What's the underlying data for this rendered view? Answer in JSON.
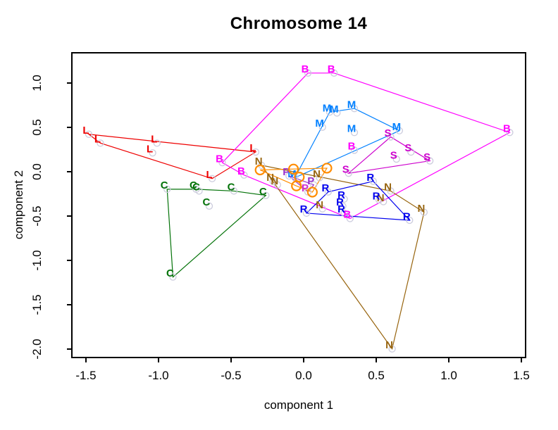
{
  "chart_data": {
    "type": "scatter",
    "title": "Chromosome 14",
    "xlabel": "component 1",
    "ylabel": "component 2",
    "xlim": [
      -1.597,
      1.529
    ],
    "ylim": [
      -2.095,
      1.341
    ],
    "xticks": [
      "-1.5",
      "-1.0",
      "-0.5",
      "0.0",
      "0.5",
      "1.0",
      "1.5"
    ],
    "yticks": [
      "1.0",
      "0.5",
      "0.0",
      "-0.5",
      "-1.0",
      "-1.5",
      "-2.0"
    ],
    "grid": false,
    "legend": "none",
    "marker_ring_color": "#ccccdd",
    "groups": [
      {
        "label": "L",
        "color": "#ee0000",
        "marker": "letter",
        "hull": true,
        "points": [
          [
            -1.5,
            0.47
          ],
          [
            -1.42,
            0.37
          ],
          [
            -1.03,
            0.37
          ],
          [
            -1.06,
            0.26
          ],
          [
            -0.35,
            0.27
          ],
          [
            -0.65,
            -0.03
          ]
        ]
      },
      {
        "label": "C",
        "color": "#047309",
        "marker": "letter",
        "hull": true,
        "points": [
          [
            -0.96,
            -0.15
          ],
          [
            -0.76,
            -0.15
          ],
          [
            -0.74,
            -0.17
          ],
          [
            -0.5,
            -0.17
          ],
          [
            -0.28,
            -0.22
          ],
          [
            -0.67,
            -0.34
          ],
          [
            -0.92,
            -1.14
          ]
        ]
      },
      {
        "label": "B",
        "color": "#ff00ff",
        "marker": "letter",
        "hull": true,
        "points": [
          [
            -0.58,
            0.15
          ],
          [
            -0.43,
            0.01
          ],
          [
            0.01,
            1.16
          ],
          [
            0.19,
            1.16
          ],
          [
            0.33,
            0.29
          ],
          [
            0.3,
            -0.48
          ],
          [
            1.4,
            0.49
          ]
        ]
      },
      {
        "label": "M",
        "color": "#0080ff",
        "marker": "letter",
        "hull": true,
        "points": [
          [
            0.11,
            0.55
          ],
          [
            0.16,
            0.72
          ],
          [
            0.21,
            0.71
          ],
          [
            0.33,
            0.76
          ],
          [
            0.33,
            0.49
          ],
          [
            0.64,
            0.51
          ],
          [
            -0.08,
            -0.02
          ]
        ]
      },
      {
        "label": "S",
        "color": "#cd00cd",
        "marker": "letter",
        "hull": true,
        "points": [
          [
            0.29,
            0.03
          ],
          [
            0.58,
            0.44
          ],
          [
            0.62,
            0.19
          ],
          [
            0.72,
            0.27
          ],
          [
            0.85,
            0.17
          ]
        ]
      },
      {
        "label": "N",
        "color": "#97640e",
        "marker": "letter",
        "hull": true,
        "points": [
          [
            -0.31,
            0.12
          ],
          [
            -0.23,
            -0.06
          ],
          [
            -0.2,
            -0.1
          ],
          [
            0.09,
            -0.02
          ],
          [
            0.11,
            -0.37
          ],
          [
            0.58,
            -0.17
          ],
          [
            0.53,
            -0.29
          ],
          [
            0.81,
            -0.41
          ],
          [
            0.59,
            -1.95
          ]
        ]
      },
      {
        "label": "P",
        "color": "#9932cc",
        "marker": "letter",
        "hull": true,
        "point_colors": [
          "#9932cc",
          "#9932cc",
          "#d02fd0"
        ],
        "points": [
          [
            -0.12,
            0.0
          ],
          [
            0.05,
            -0.1
          ],
          [
            0.01,
            -0.18
          ]
        ]
      },
      {
        "label": "R",
        "color": "#0000ee",
        "marker": "letter",
        "hull": true,
        "points": [
          [
            0.0,
            -0.42
          ],
          [
            0.15,
            -0.18
          ],
          [
            0.26,
            -0.26
          ],
          [
            0.25,
            -0.34
          ],
          [
            0.26,
            -0.42
          ],
          [
            0.46,
            -0.06
          ],
          [
            0.5,
            -0.27
          ],
          [
            0.71,
            -0.5
          ]
        ]
      },
      {
        "label": "O",
        "color": "#ff8c00",
        "marker": "circle",
        "hull": true,
        "points": [
          [
            -0.3,
            0.02
          ],
          [
            -0.07,
            0.03
          ],
          [
            -0.03,
            -0.06
          ],
          [
            -0.05,
            -0.16
          ],
          [
            0.06,
            -0.23
          ],
          [
            0.16,
            0.04
          ]
        ]
      }
    ]
  }
}
